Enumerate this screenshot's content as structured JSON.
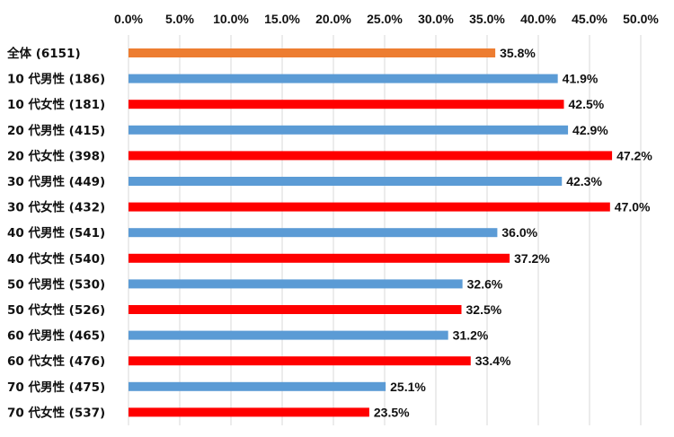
{
  "chart_data": {
    "type": "bar",
    "orientation": "horizontal",
    "x_axis_position": "top",
    "xlim": [
      0,
      50
    ],
    "x_ticks": [
      "0.0%",
      "5.0%",
      "10.0%",
      "15.0%",
      "20.0%",
      "25.0%",
      "30.0%",
      "35.0%",
      "40.0%",
      "45.0%",
      "50.0%"
    ],
    "grid": true,
    "legend": "none",
    "categories": [
      "全体 (6151)",
      "10 代男性 (186)",
      "10 代女性 (181)",
      "20 代男性 (415)",
      "20 代女性 (398)",
      "30 代男性 (449)",
      "30 代女性 (432)",
      "40 代男性 (541)",
      "40 代女性 (540)",
      "50 代男性 (530)",
      "50 代女性 (526)",
      "60 代男性 (465)",
      "60 代女性 (476)",
      "70 代男性 (475)",
      "70 代女性 (537)"
    ],
    "values": [
      35.8,
      41.9,
      42.5,
      42.9,
      47.2,
      42.3,
      47.0,
      36.0,
      37.2,
      32.6,
      32.5,
      31.2,
      33.4,
      25.1,
      23.5
    ],
    "value_labels": [
      "35.8%",
      "41.9%",
      "42.5%",
      "42.9%",
      "47.2%",
      "42.3%",
      "47.0%",
      "36.0%",
      "37.2%",
      "32.6%",
      "32.5%",
      "31.2%",
      "33.4%",
      "25.1%",
      "23.5%"
    ],
    "bar_colors": [
      "#ed7d31",
      "#5b9bd5",
      "#ff0000",
      "#5b9bd5",
      "#ff0000",
      "#5b9bd5",
      "#ff0000",
      "#5b9bd5",
      "#ff0000",
      "#5b9bd5",
      "#ff0000",
      "#5b9bd5",
      "#ff0000",
      "#5b9bd5",
      "#ff0000"
    ],
    "gridline_color": "#d9d9d9",
    "text_color": "#111111"
  }
}
